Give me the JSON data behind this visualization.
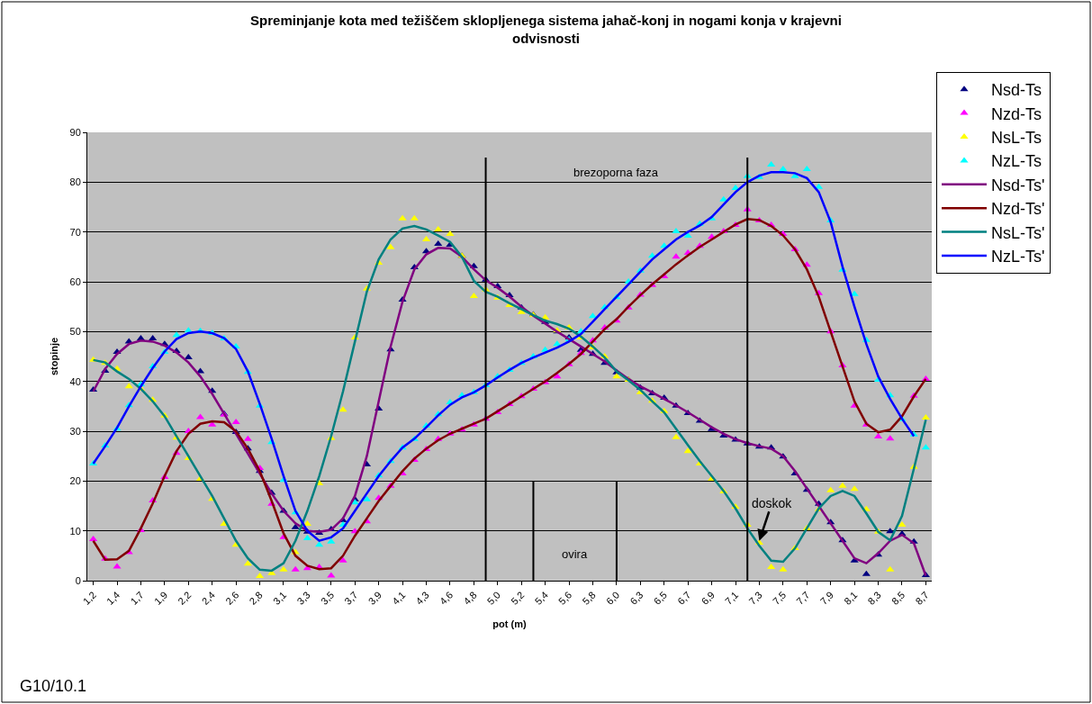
{
  "chart_data": {
    "type": "scatter",
    "title": "Spreminjanje kota med težiščem sklopljenega sistema jahač-konj in nogami konja v krajevni odvisnosti",
    "xlabel": "pot (m)",
    "ylabel": "stopinje",
    "categories": [
      "1,2",
      null,
      "1,4",
      null,
      "1,7",
      null,
      "1,9",
      null,
      "2,2",
      null,
      "2,4",
      null,
      "2,6",
      null,
      "2,8",
      null,
      "3,1",
      null,
      "3,3",
      null,
      "3,5",
      null,
      "3,7",
      null,
      "3,9",
      null,
      "4,1",
      null,
      "4,3",
      null,
      "4,6",
      null,
      "4,8",
      null,
      "5,0",
      null,
      "5,2",
      null,
      "5,4",
      null,
      "5,6",
      null,
      "5,8",
      null,
      "6,0",
      null,
      "6,3",
      null,
      "6,5",
      null,
      "6,7",
      null,
      "6,9",
      null,
      "7,1",
      null,
      "7,3",
      null,
      "7,5",
      null,
      "7,7",
      null,
      "7,9",
      null,
      "8,1",
      null,
      "8,3",
      null,
      "8,5",
      null,
      "8,7"
    ],
    "ylim": [
      0,
      90
    ],
    "yticks": [
      0,
      10,
      20,
      30,
      40,
      50,
      60,
      70,
      80,
      90
    ],
    "grid": "y",
    "legend": "top right",
    "series": [
      {
        "name": "Nsd-Ts",
        "marker": "triangle",
        "color": "#000080",
        "values": [
          38.3,
          42.1,
          45.9,
          48,
          48.6,
          48.6,
          47.5,
          46.1,
          44.8,
          42,
          38.1,
          33.5,
          29.8,
          26.5,
          22,
          17.6,
          14,
          10.7,
          9.8,
          9.6,
          10.3,
          12.1,
          16.3,
          23.3,
          34.5,
          46.4,
          56.4,
          62.9,
          66.1,
          67.6,
          67.4,
          65.2,
          63.1,
          60.4,
          59.1,
          57.3,
          54.8,
          53.4,
          51.9,
          50,
          48.8,
          46.3,
          45.5,
          43.7,
          41.8,
          40.3,
          38.7,
          37.6,
          36.7,
          35.1,
          33.6,
          32.1,
          30.4,
          29.1,
          28.3,
          27.5,
          26.9,
          26.7,
          24.9,
          21.5,
          18.2,
          15.4,
          11.7,
          8.1,
          4,
          1.3,
          5.2,
          9.9,
          9.4,
          7.8,
          1.1
        ]
      },
      {
        "name": "Nzd-Ts",
        "marker": "triangle",
        "color": "#ff00ff",
        "values": [
          8.3,
          4.4,
          2.8,
          5.7,
          10.1,
          16.1,
          20.8,
          25.6,
          30,
          32.8,
          31.3,
          33.3,
          31.8,
          28.4,
          22.6,
          15.4,
          8.7,
          2.2,
          2.5,
          2.7,
          1,
          4,
          9.9,
          11.9,
          16.6,
          19,
          21.5,
          24.2,
          26.4,
          28.4,
          29.5,
          30.3,
          31.3,
          32.5,
          33.8,
          35.4,
          37,
          38.5,
          39.8,
          41,
          43.4,
          45.7,
          48.2,
          50.8,
          52.2,
          54.8,
          57.4,
          59.3,
          61.1,
          65,
          65.8,
          67.2,
          69,
          70.1,
          71.4,
          74.5,
          72.3,
          71.4,
          69.6,
          66.5,
          63.4,
          57.7,
          50,
          43.2,
          35.1,
          31.3,
          28.9,
          28.5,
          null,
          37.1,
          40.5
        ]
      },
      {
        "name": "NsL-Ts",
        "marker": "triangle",
        "color": "#ffff00",
        "values": [
          44.3,
          43.7,
          42.5,
          39,
          38.5,
          36.3,
          33.1,
          28.7,
          24.6,
          20.4,
          16.4,
          11.4,
          7.2,
          3.4,
          0.9,
          1.5,
          2.2,
          5.7,
          11.4,
          19.5,
          28.6,
          34.3,
          48.8,
          58.6,
          63.8,
          66.9,
          72.7,
          72.7,
          68.5,
          70.5,
          69.6,
          65.2,
          57.1,
          58.4,
          56.8,
          55.3,
          53.9,
          53.3,
          52.8,
          50.2,
          50.8,
          48.8,
          46.8,
          45,
          41,
          40.3,
          37.8,
          36.1,
          34,
          28.8,
          26,
          23.5,
          20.4,
          17.9,
          14.8,
          11.2,
          7.6,
          2.7,
          2.2,
          6.5,
          10.5,
          14.3,
          18.1,
          19,
          18.4,
          14.3,
          9.8,
          2.2,
          11.2,
          22.8,
          32.7
        ]
      },
      {
        "name": "NzL-Ts",
        "marker": "triangle",
        "color": "#00ffff",
        "values": [
          23.5,
          27.1,
          30.5,
          35.2,
          39.4,
          43,
          45.9,
          49.3,
          50.2,
          50.1,
          49.7,
          48.6,
          47,
          41.9,
          35.1,
          27.8,
          20.2,
          13.7,
          8.5,
          7.2,
          7.8,
          11.2,
          15.7,
          16.3,
          21.1,
          24,
          26.7,
          28.4,
          31.1,
          33.4,
          35.8,
          37.2,
          37.8,
          39.2,
          41,
          42.3,
          43.7,
          45,
          46.3,
          47.5,
          48.4,
          50,
          53.1,
          54.9,
          56.9,
          60,
          62.2,
          65.2,
          67.2,
          70.1,
          69.2,
          71.6,
          72.7,
          76.5,
          78.8,
          81.2,
          81,
          83.5,
          82.6,
          81.2,
          82.6,
          79,
          72.3,
          62.4,
          57.5,
          48.3,
          40.3,
          37.2,
          32.4,
          29.3,
          26.7
        ]
      },
      {
        "name": "Nsd-Ts'",
        "type": "line",
        "marker": "none",
        "color": "#800080",
        "values": [
          38,
          42.5,
          45.5,
          47.5,
          48.2,
          48,
          47.2,
          45.8,
          43.8,
          41,
          37.5,
          33.5,
          29.5,
          25.5,
          21.5,
          17.5,
          14,
          11.5,
          10,
          9.8,
          10.2,
          12.5,
          17,
          25,
          36,
          47,
          56,
          62.5,
          65.5,
          66.8,
          66.7,
          65,
          62.5,
          60.3,
          58.8,
          57,
          55,
          53.2,
          51.6,
          50,
          48.5,
          47,
          45.5,
          44,
          42.2,
          40.5,
          39,
          37.8,
          36.5,
          35.2,
          33.8,
          32.3,
          30.8,
          29.5,
          28.4,
          27.6,
          27,
          26.5,
          25,
          22,
          18.5,
          15,
          11.5,
          8,
          4.5,
          3.5,
          5.5,
          8,
          9.2,
          7.5,
          1
        ]
      },
      {
        "name": "Nzd-Ts'",
        "type": "line",
        "marker": "none",
        "color": "#800000",
        "values": [
          8,
          4.2,
          4.3,
          6,
          10.5,
          15.5,
          21,
          26,
          29.5,
          31.5,
          32,
          31.8,
          30,
          26.5,
          22,
          16,
          9.5,
          5,
          3,
          2.3,
          2.5,
          5,
          9,
          12.5,
          16,
          19,
          22,
          24.5,
          26.5,
          28.2,
          29.5,
          30.5,
          31.5,
          32.5,
          34,
          35.5,
          37,
          38.5,
          40,
          41.7,
          43.5,
          45.5,
          48,
          50.5,
          52.5,
          55,
          57.3,
          59.5,
          61.5,
          63.5,
          65.3,
          67,
          68.5,
          70,
          71.5,
          72.6,
          72.4,
          71.2,
          69.3,
          66.5,
          62.5,
          57,
          50,
          43,
          36,
          31.5,
          29.8,
          30.3,
          33,
          37,
          40.5
        ]
      },
      {
        "name": "NsL-Ts'",
        "type": "line",
        "marker": "none",
        "color": "#008080",
        "values": [
          44.3,
          43.8,
          42,
          40.5,
          38.5,
          36,
          33,
          29,
          25,
          21,
          17,
          12.5,
          8,
          4.5,
          2.2,
          2,
          3.5,
          8,
          14,
          21,
          29,
          38,
          48,
          58,
          64.5,
          68.5,
          70.7,
          71.2,
          70.5,
          69.3,
          68,
          65,
          60.2,
          58,
          57,
          55.7,
          54.5,
          53.3,
          52.2,
          51.5,
          50.6,
          49,
          47,
          44.8,
          42,
          40.2,
          38.3,
          36,
          33.8,
          30.5,
          27.2,
          24,
          21,
          18,
          14.5,
          10.5,
          7,
          4,
          3.8,
          6.5,
          10.5,
          14.5,
          17,
          18,
          17,
          13.5,
          9.8,
          8.1,
          13,
          22.5,
          32.3
        ]
      },
      {
        "name": "NzL-Ts'",
        "type": "line",
        "marker": "none",
        "color": "#0000ff",
        "values": [
          23.5,
          27,
          30.7,
          35,
          39,
          42.7,
          46,
          48.5,
          49.7,
          50,
          49.7,
          48.7,
          46.5,
          42,
          35.5,
          28.5,
          21,
          14,
          10,
          8,
          8.7,
          10.5,
          14,
          17.5,
          21,
          24,
          26.7,
          28.5,
          30.8,
          33.2,
          35.3,
          36.8,
          37.8,
          39.2,
          40.8,
          42.3,
          43.7,
          44.8,
          45.8,
          46.8,
          48,
          49.5,
          52,
          54.5,
          57,
          59.5,
          62,
          64.5,
          66.5,
          68.5,
          70,
          71.3,
          73,
          75.5,
          78,
          80,
          81.3,
          82,
          82,
          81.8,
          80.8,
          78,
          72,
          63,
          55,
          47.5,
          41,
          36.5,
          32.5,
          29,
          null
        ]
      }
    ],
    "annotations": [
      "brezoporna faza",
      "ovira",
      {
        "text": "doskok",
        "x": "7,3",
        "y": 8
      },
      "G10/10.1"
    ]
  }
}
